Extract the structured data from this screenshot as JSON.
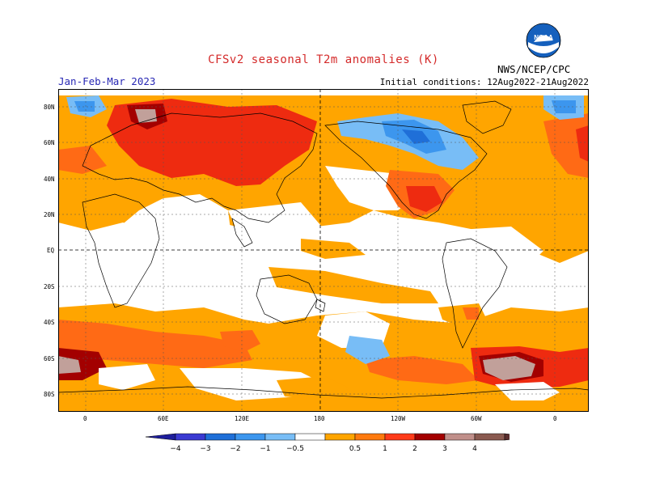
{
  "title": "CFSv2 seasonal T2m anomalies (K)",
  "period": "Jan-Feb-Mar 2023",
  "initial_conditions": "Initial conditions: 12Aug2022-21Aug2022",
  "agency": "NWS/NCEP/CPC",
  "logo_text": "NOAA",
  "lat_labels": [
    "80N",
    "60N",
    "40N",
    "20N",
    "EQ",
    "20S",
    "40S",
    "60S",
    "80S"
  ],
  "lon_labels": [
    "0",
    "60E",
    "120E",
    "180",
    "120W",
    "60W",
    "0"
  ],
  "legend": {
    "ticks": [
      "−4",
      "−3",
      "−2",
      "−1",
      "−0.5",
      "0.5",
      "1",
      "2",
      "3",
      "4"
    ],
    "colors": [
      "#1e1e9c",
      "#3a3ad2",
      "#1f6fd8",
      "#3c96ee",
      "#78bdf6",
      "#ffffff",
      "#ffa500",
      "#ff7a0e",
      "#ff3b1a",
      "#a30000",
      "#c08f8a",
      "#8a5a50",
      "#5a2e2e"
    ]
  },
  "colors": {
    "pos_05": "#ffa500",
    "pos_1": "#ff6a15",
    "pos_2": "#ee2b10",
    "pos_3": "#a30000",
    "pos_4": "#c1a09a",
    "neg_05": "#78bdf6",
    "neg_1": "#3c96ee",
    "neg_2": "#1f6fd8",
    "neg_3": "#3a3ad2"
  }
}
